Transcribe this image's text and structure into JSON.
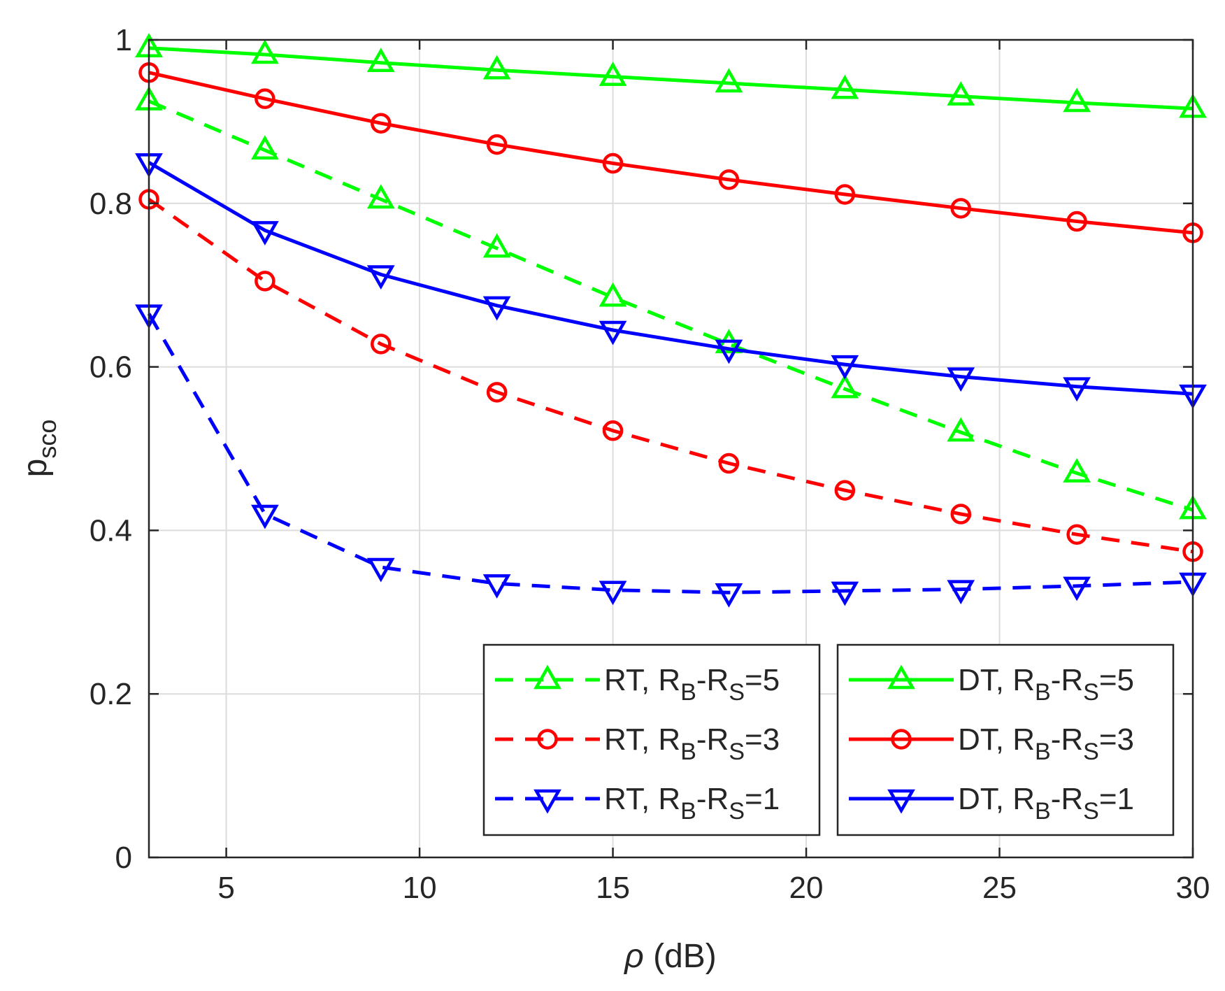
{
  "chart_data": {
    "type": "line",
    "title": "",
    "xlabel_symbol": "ρ",
    "xlabel_unit": "(dB)",
    "ylabel_main": "p",
    "ylabel_sub": "sco",
    "xlim": [
      3,
      30
    ],
    "ylim": [
      0,
      1
    ],
    "grid": true,
    "x_ticks": [
      5,
      10,
      15,
      20,
      25,
      30
    ],
    "y_ticks": [
      0,
      0.2,
      0.4,
      0.6,
      0.8,
      1
    ],
    "x_tick_labels": [
      "5",
      "10",
      "15",
      "20",
      "25",
      "30"
    ],
    "y_tick_labels": [
      "0",
      "0.2",
      "0.4",
      "0.6",
      "0.8",
      "1"
    ],
    "x": [
      3,
      6,
      9,
      12,
      15,
      18,
      21,
      24,
      27,
      30
    ],
    "series": [
      {
        "name": "RT, RB-RS=5",
        "scheme": "RT",
        "rb": "B",
        "rs": "S",
        "value_label": "=5",
        "color": "#00ff00",
        "style": "dashed",
        "marker": "triangle-up",
        "values": [
          0.925,
          0.865,
          0.805,
          0.745,
          0.685,
          0.628,
          0.573,
          0.52,
          0.47,
          0.425
        ]
      },
      {
        "name": "RT, RB-RS=3",
        "scheme": "RT",
        "rb": "B",
        "rs": "S",
        "value_label": "=3",
        "color": "#ff0000",
        "style": "dashed",
        "marker": "circle",
        "values": [
          0.805,
          0.705,
          0.628,
          0.569,
          0.522,
          0.482,
          0.449,
          0.42,
          0.395,
          0.374
        ]
      },
      {
        "name": "RT, RB-RS=1",
        "scheme": "RT",
        "rb": "B",
        "rs": "S",
        "value_label": "=1",
        "color": "#0000ff",
        "style": "dashed",
        "marker": "triangle-down",
        "values": [
          0.665,
          0.42,
          0.355,
          0.335,
          0.327,
          0.324,
          0.326,
          0.328,
          0.332,
          0.337
        ]
      },
      {
        "name": "DT, RB-RS=5",
        "scheme": "DT",
        "rb": "B",
        "rs": "S",
        "value_label": "=5",
        "color": "#00ff00",
        "style": "solid",
        "marker": "triangle-up",
        "values": [
          0.99,
          0.982,
          0.972,
          0.963,
          0.955,
          0.947,
          0.939,
          0.931,
          0.923,
          0.916
        ]
      },
      {
        "name": "DT, RB-RS=3",
        "scheme": "DT",
        "rb": "B",
        "rs": "S",
        "value_label": "=3",
        "color": "#ff0000",
        "style": "solid",
        "marker": "circle",
        "values": [
          0.96,
          0.928,
          0.898,
          0.872,
          0.849,
          0.829,
          0.811,
          0.794,
          0.778,
          0.764
        ]
      },
      {
        "name": "DT, RB-RS=1",
        "scheme": "DT",
        "rb": "B",
        "rs": "S",
        "value_label": "=1",
        "color": "#0000ff",
        "style": "solid",
        "marker": "triangle-down",
        "values": [
          0.85,
          0.767,
          0.713,
          0.675,
          0.645,
          0.622,
          0.603,
          0.588,
          0.576,
          0.567
        ]
      }
    ],
    "legend_placement": "bottom-right, two columns"
  }
}
